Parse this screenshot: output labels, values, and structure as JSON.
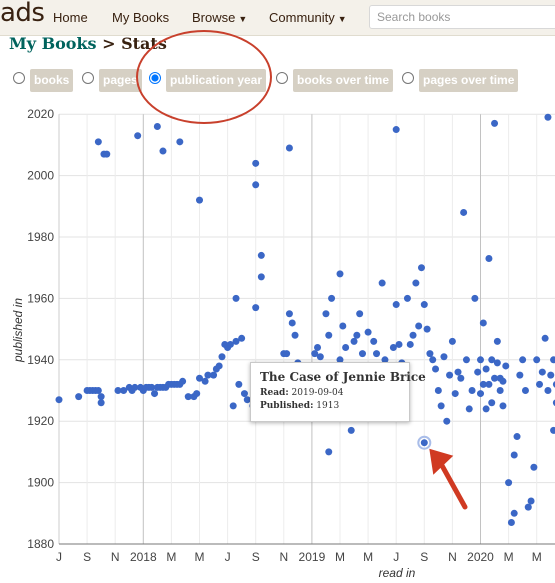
{
  "header": {
    "logo_fragment": "ads",
    "nav": [
      "Home",
      "My Books",
      "Browse",
      "Community"
    ],
    "search_placeholder": "Search books"
  },
  "breadcrumb": {
    "link": "My Books",
    "separator": ">",
    "current": "Stats"
  },
  "options": [
    {
      "label": "books",
      "selected": false
    },
    {
      "label": "pages",
      "selected": false
    },
    {
      "label": "publication year",
      "selected": true
    },
    {
      "label": "books over time",
      "selected": false
    },
    {
      "label": "pages over time",
      "selected": false
    }
  ],
  "colors": {
    "point": "#3b67c6",
    "annotation": "#d03a22",
    "chip": "#d6d0c4",
    "brand": "#382110",
    "link": "#00635d"
  },
  "tooltip": {
    "title": "The Case of Jennie Brice",
    "read_label": "Read:",
    "read_value": "2019-09-04",
    "published_label": "Published:",
    "published_value": "1913"
  },
  "chart_data": {
    "type": "scatter",
    "xlabel": "read in",
    "ylabel": "published in",
    "ylim": [
      1880,
      2020
    ],
    "xlim": [
      0,
      17.8
    ],
    "yticks": [
      1880,
      1900,
      1920,
      1940,
      1960,
      1980,
      2000,
      2020
    ],
    "xticks": [
      {
        "label": "J",
        "pos": 0
      },
      {
        "label": "S",
        "pos": 1
      },
      {
        "label": "N",
        "pos": 2
      },
      {
        "label": "2018",
        "pos": 3
      },
      {
        "label": "M",
        "pos": 4
      },
      {
        "label": "M",
        "pos": 5
      },
      {
        "label": "J",
        "pos": 6
      },
      {
        "label": "S",
        "pos": 7
      },
      {
        "label": "N",
        "pos": 8
      },
      {
        "label": "2019",
        "pos": 9
      },
      {
        "label": "M",
        "pos": 10
      },
      {
        "label": "M",
        "pos": 11
      },
      {
        "label": "J",
        "pos": 12
      },
      {
        "label": "S",
        "pos": 13
      },
      {
        "label": "N",
        "pos": 14
      },
      {
        "label": "2020",
        "pos": 15
      },
      {
        "label": "M",
        "pos": 16
      },
      {
        "label": "M",
        "pos": 17
      }
    ],
    "year_lines": [
      3,
      9,
      15
    ],
    "highlight_index": 0,
    "points": [
      [
        13.0,
        1913
      ],
      [
        0.0,
        1927
      ],
      [
        0.7,
        1928
      ],
      [
        1.0,
        1930
      ],
      [
        1.1,
        1930
      ],
      [
        1.2,
        1930
      ],
      [
        1.3,
        1930
      ],
      [
        1.4,
        1930
      ],
      [
        1.5,
        1928
      ],
      [
        1.5,
        1926
      ],
      [
        1.4,
        2011
      ],
      [
        1.6,
        2007
      ],
      [
        1.7,
        2007
      ],
      [
        2.1,
        1930
      ],
      [
        2.3,
        1930
      ],
      [
        2.5,
        1931
      ],
      [
        2.6,
        1930
      ],
      [
        2.7,
        1931
      ],
      [
        2.8,
        2013
      ],
      [
        2.9,
        1931
      ],
      [
        3.0,
        1930
      ],
      [
        3.1,
        1931
      ],
      [
        3.2,
        1931
      ],
      [
        3.3,
        1931
      ],
      [
        3.4,
        1929
      ],
      [
        3.5,
        1931
      ],
      [
        3.6,
        1931
      ],
      [
        3.7,
        1931
      ],
      [
        3.8,
        1931
      ],
      [
        3.9,
        1932
      ],
      [
        4.0,
        1932
      ],
      [
        4.1,
        1932
      ],
      [
        4.2,
        1932
      ],
      [
        4.3,
        1932
      ],
      [
        4.4,
        1933
      ],
      [
        3.5,
        2016
      ],
      [
        3.7,
        2008
      ],
      [
        4.3,
        2011
      ],
      [
        4.6,
        1928
      ],
      [
        4.8,
        1928
      ],
      [
        4.9,
        1929
      ],
      [
        5.0,
        1934
      ],
      [
        5.2,
        1933
      ],
      [
        5.0,
        1992
      ],
      [
        5.3,
        1935
      ],
      [
        5.5,
        1935
      ],
      [
        5.6,
        1937
      ],
      [
        5.7,
        1938
      ],
      [
        5.8,
        1941
      ],
      [
        5.9,
        1945
      ],
      [
        6.0,
        1944
      ],
      [
        6.1,
        1945
      ],
      [
        6.2,
        1925
      ],
      [
        6.3,
        1960
      ],
      [
        6.3,
        1946
      ],
      [
        6.4,
        1932
      ],
      [
        6.5,
        1947
      ],
      [
        6.6,
        1929
      ],
      [
        6.7,
        1927
      ],
      [
        6.9,
        1925
      ],
      [
        7.0,
        1957
      ],
      [
        7.0,
        1997
      ],
      [
        7.0,
        2004
      ],
      [
        7.2,
        1967
      ],
      [
        7.2,
        1974
      ],
      [
        7.1,
        1932
      ],
      [
        7.3,
        1930
      ],
      [
        7.4,
        1937
      ],
      [
        8.0,
        1942
      ],
      [
        8.1,
        1942
      ],
      [
        8.2,
        2009
      ],
      [
        8.2,
        1955
      ],
      [
        8.3,
        1952
      ],
      [
        8.4,
        1948
      ],
      [
        8.5,
        1939
      ],
      [
        8.7,
        1929
      ],
      [
        8.9,
        1932
      ],
      [
        9.0,
        1938
      ],
      [
        9.1,
        1942
      ],
      [
        9.2,
        1944
      ],
      [
        9.3,
        1941
      ],
      [
        9.4,
        1934
      ],
      [
        9.5,
        1955
      ],
      [
        9.6,
        1910
      ],
      [
        9.6,
        1948
      ],
      [
        9.7,
        1960
      ],
      [
        9.8,
        1938
      ],
      [
        9.9,
        1935
      ],
      [
        10.0,
        1968
      ],
      [
        10.0,
        1940
      ],
      [
        10.1,
        1951
      ],
      [
        10.2,
        1944
      ],
      [
        10.3,
        1935
      ],
      [
        10.4,
        1917
      ],
      [
        10.5,
        1946
      ],
      [
        10.6,
        1948
      ],
      [
        10.7,
        1955
      ],
      [
        10.8,
        1942
      ],
      [
        10.9,
        1938
      ],
      [
        11.0,
        1949
      ],
      [
        11.1,
        1936
      ],
      [
        11.2,
        1946
      ],
      [
        11.3,
        1942
      ],
      [
        11.5,
        1965
      ],
      [
        11.6,
        1940
      ],
      [
        11.7,
        1932
      ],
      [
        11.8,
        1935
      ],
      [
        11.9,
        1944
      ],
      [
        12.0,
        1958
      ],
      [
        12.0,
        2015
      ],
      [
        12.1,
        1945
      ],
      [
        12.2,
        1939
      ],
      [
        12.3,
        1936
      ],
      [
        12.4,
        1960
      ],
      [
        12.5,
        1945
      ],
      [
        12.6,
        1948
      ],
      [
        12.7,
        1965
      ],
      [
        12.8,
        1951
      ],
      [
        12.9,
        1970
      ],
      [
        13.0,
        1958
      ],
      [
        13.1,
        1950
      ],
      [
        13.2,
        1942
      ],
      [
        13.3,
        1940
      ],
      [
        13.4,
        1937
      ],
      [
        13.5,
        1930
      ],
      [
        13.6,
        1925
      ],
      [
        13.7,
        1941
      ],
      [
        13.8,
        1920
      ],
      [
        13.9,
        1935
      ],
      [
        14.0,
        1946
      ],
      [
        14.1,
        1929
      ],
      [
        14.2,
        1936
      ],
      [
        14.3,
        1934
      ],
      [
        14.4,
        1988
      ],
      [
        14.5,
        1940
      ],
      [
        14.6,
        1924
      ],
      [
        14.7,
        1930
      ],
      [
        14.8,
        1960
      ],
      [
        14.9,
        1936
      ],
      [
        15.0,
        1929
      ],
      [
        15.0,
        1940
      ],
      [
        15.1,
        1932
      ],
      [
        15.1,
        1952
      ],
      [
        15.2,
        1924
      ],
      [
        15.2,
        1937
      ],
      [
        15.3,
        1932
      ],
      [
        15.3,
        1973
      ],
      [
        15.4,
        1940
      ],
      [
        15.4,
        1926
      ],
      [
        15.5,
        2017
      ],
      [
        15.5,
        1934
      ],
      [
        15.6,
        1946
      ],
      [
        15.6,
        1939
      ],
      [
        15.7,
        1934
      ],
      [
        15.7,
        1930
      ],
      [
        15.8,
        1925
      ],
      [
        15.8,
        1933
      ],
      [
        15.9,
        1938
      ],
      [
        16.0,
        1900
      ],
      [
        16.1,
        1887
      ],
      [
        16.2,
        1890
      ],
      [
        16.2,
        1909
      ],
      [
        16.3,
        1915
      ],
      [
        16.4,
        1935
      ],
      [
        16.5,
        1940
      ],
      [
        16.6,
        1930
      ],
      [
        16.7,
        1892
      ],
      [
        16.8,
        1894
      ],
      [
        16.9,
        1905
      ],
      [
        17.0,
        1940
      ],
      [
        17.1,
        1932
      ],
      [
        17.2,
        1936
      ],
      [
        17.3,
        1947
      ],
      [
        17.4,
        1930
      ],
      [
        17.4,
        2019
      ],
      [
        17.5,
        1935
      ],
      [
        17.6,
        1917
      ],
      [
        17.6,
        1940
      ],
      [
        17.7,
        1926
      ],
      [
        17.7,
        1932
      ],
      [
        17.8,
        1934
      ],
      [
        17.8,
        1945
      ],
      [
        17.9,
        1939
      ],
      [
        18.0,
        1940
      ],
      [
        18.1,
        1941
      ],
      [
        18.2,
        1947
      ]
    ]
  }
}
